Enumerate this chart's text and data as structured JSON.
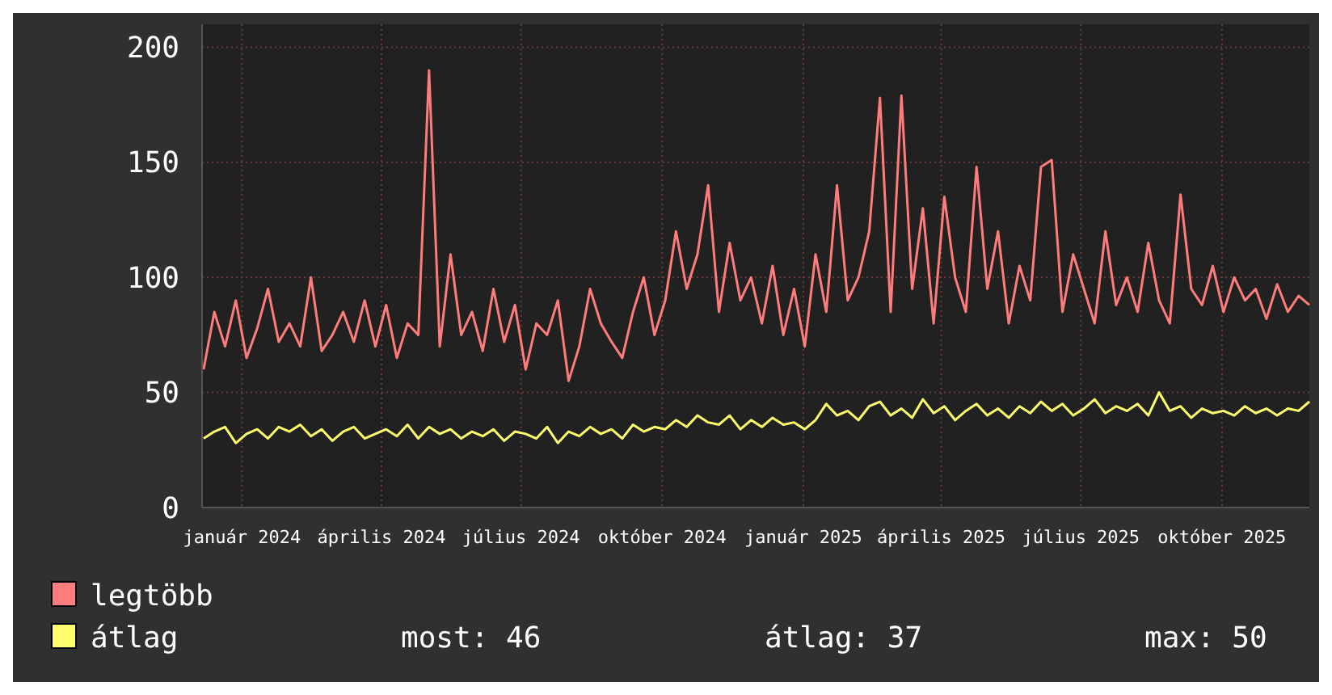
{
  "chart_data": {
    "type": "line",
    "xlim": [
      "2023-12-06",
      "2025-11-27"
    ],
    "ylim": [
      0,
      210
    ],
    "yticks": [
      0,
      50,
      100,
      150,
      200
    ],
    "xticks": [
      {
        "value": "2024-01-01",
        "label": "január 2024"
      },
      {
        "value": "2024-04-01",
        "label": "április 2024"
      },
      {
        "value": "2024-07-01",
        "label": "július 2024"
      },
      {
        "value": "2024-10-01",
        "label": "október 2024"
      },
      {
        "value": "2025-01-01",
        "label": "január 2025"
      },
      {
        "value": "2025-04-01",
        "label": "április 2025"
      },
      {
        "value": "2025-07-01",
        "label": "július 2025"
      },
      {
        "value": "2025-10-01",
        "label": "október 2025"
      }
    ],
    "grid": true,
    "legend": "bottom",
    "line_style": "solid",
    "marker": "none",
    "x": [
      "2023-12-07",
      "2023-12-14",
      "2023-12-21",
      "2023-12-28",
      "2024-01-04",
      "2024-01-11",
      "2024-01-18",
      "2024-01-25",
      "2024-02-01",
      "2024-02-08",
      "2024-02-15",
      "2024-02-22",
      "2024-02-29",
      "2024-03-07",
      "2024-03-14",
      "2024-03-21",
      "2024-03-28",
      "2024-04-04",
      "2024-04-11",
      "2024-04-18",
      "2024-04-25",
      "2024-05-02",
      "2024-05-09",
      "2024-05-16",
      "2024-05-23",
      "2024-05-30",
      "2024-06-06",
      "2024-06-13",
      "2024-06-20",
      "2024-06-27",
      "2024-07-04",
      "2024-07-11",
      "2024-07-18",
      "2024-07-25",
      "2024-08-01",
      "2024-08-08",
      "2024-08-15",
      "2024-08-22",
      "2024-08-29",
      "2024-09-05",
      "2024-09-12",
      "2024-09-19",
      "2024-09-26",
      "2024-10-03",
      "2024-10-10",
      "2024-10-17",
      "2024-10-24",
      "2024-10-31",
      "2024-11-07",
      "2024-11-14",
      "2024-11-21",
      "2024-11-28",
      "2024-12-05",
      "2024-12-12",
      "2024-12-19",
      "2024-12-26",
      "2025-01-02",
      "2025-01-09",
      "2025-01-16",
      "2025-01-23",
      "2025-01-30",
      "2025-02-06",
      "2025-02-13",
      "2025-02-20",
      "2025-02-27",
      "2025-03-06",
      "2025-03-13",
      "2025-03-20",
      "2025-03-27",
      "2025-04-03",
      "2025-04-10",
      "2025-04-17",
      "2025-04-24",
      "2025-05-01",
      "2025-05-08",
      "2025-05-15",
      "2025-05-22",
      "2025-05-29",
      "2025-06-05",
      "2025-06-12",
      "2025-06-19",
      "2025-06-26",
      "2025-07-03",
      "2025-07-10",
      "2025-07-17",
      "2025-07-24",
      "2025-07-31",
      "2025-08-07",
      "2025-08-14",
      "2025-08-21",
      "2025-08-28",
      "2025-09-04",
      "2025-09-11",
      "2025-09-18",
      "2025-09-25",
      "2025-10-02",
      "2025-10-09",
      "2025-10-16",
      "2025-10-23",
      "2025-10-30",
      "2025-11-06",
      "2025-11-13",
      "2025-11-20",
      "2025-11-27"
    ],
    "series": [
      {
        "name": "legtöbb",
        "color": "#ff7c7c",
        "values": [
          60,
          85,
          70,
          90,
          65,
          78,
          95,
          72,
          80,
          70,
          100,
          68,
          75,
          85,
          72,
          90,
          70,
          88,
          65,
          80,
          75,
          190,
          70,
          110,
          75,
          85,
          68,
          95,
          72,
          88,
          60,
          80,
          75,
          90,
          55,
          70,
          95,
          80,
          72,
          65,
          85,
          100,
          75,
          90,
          120,
          95,
          110,
          140,
          85,
          115,
          90,
          100,
          80,
          105,
          75,
          95,
          70,
          110,
          85,
          140,
          90,
          100,
          120,
          178,
          85,
          179,
          95,
          130,
          80,
          135,
          100,
          85,
          148,
          95,
          120,
          80,
          105,
          90,
          148,
          151,
          85,
          110,
          95,
          80,
          120,
          88,
          100,
          85,
          115,
          90,
          80,
          136,
          95,
          88,
          105,
          85,
          100,
          90,
          95,
          82,
          97,
          85,
          92,
          88
        ]
      },
      {
        "name": "átlag",
        "color": "#ffff6e",
        "values": [
          30,
          33,
          35,
          28,
          32,
          34,
          30,
          35,
          33,
          36,
          31,
          34,
          29,
          33,
          35,
          30,
          32,
          34,
          31,
          36,
          30,
          35,
          32,
          34,
          30,
          33,
          31,
          34,
          29,
          33,
          32,
          30,
          35,
          28,
          33,
          31,
          35,
          32,
          34,
          30,
          36,
          33,
          35,
          34,
          38,
          35,
          40,
          37,
          36,
          40,
          34,
          38,
          35,
          39,
          36,
          37,
          34,
          38,
          45,
          40,
          42,
          38,
          44,
          46,
          40,
          43,
          39,
          47,
          41,
          44,
          38,
          42,
          45,
          40,
          43,
          39,
          44,
          41,
          46,
          42,
          45,
          40,
          43,
          47,
          41,
          44,
          42,
          45,
          40,
          50,
          42,
          44,
          39,
          43,
          41,
          42,
          40,
          44,
          41,
          43,
          40,
          43,
          42,
          46
        ]
      }
    ],
    "annotations": [
      "most: 46",
      "átlag: 37",
      "max: 50"
    ]
  }
}
